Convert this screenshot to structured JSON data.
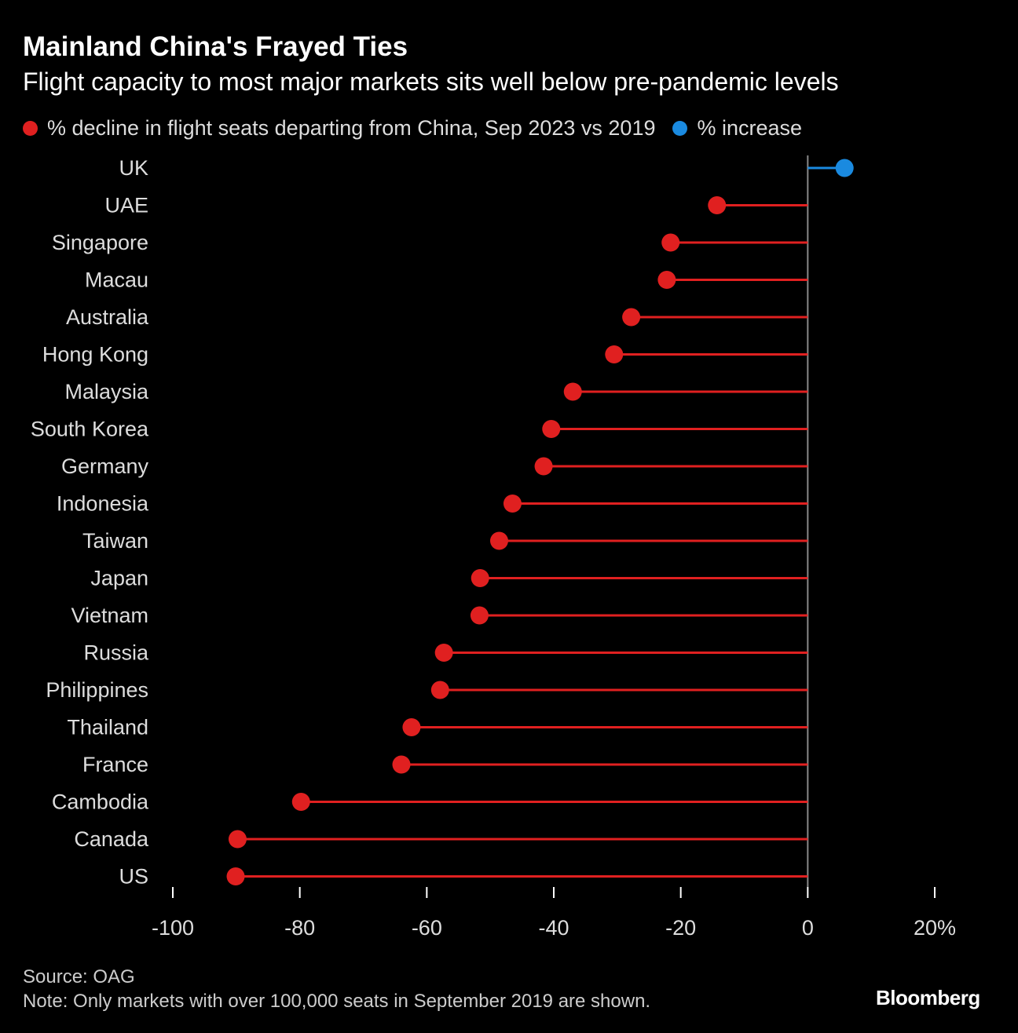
{
  "chart_data": {
    "type": "lollipop",
    "title": "Mainland China's Frayed Ties",
    "subtitle": "Flight capacity to most major markets sits well below pre-pandemic levels",
    "legend": [
      {
        "label": "% decline in flight seats departing from China, Sep 2023 vs 2019",
        "color": "#e02020"
      },
      {
        "label": "% increase",
        "color": "#1a8ae0"
      }
    ],
    "categories": [
      "UK",
      "UAE",
      "Singapore",
      "Macau",
      "Australia",
      "Hong Kong",
      "Malaysia",
      "South Korea",
      "Germany",
      "Indonesia",
      "Taiwan",
      "Japan",
      "Vietnam",
      "Russia",
      "Philippines",
      "Thailand",
      "France",
      "Cambodia",
      "Canada",
      "US"
    ],
    "values": [
      5.8,
      -14.3,
      -21.6,
      -22.2,
      -27.8,
      -30.5,
      -37,
      -40.4,
      -41.6,
      -46.5,
      -48.6,
      -51.6,
      -51.7,
      -57.3,
      -57.9,
      -62.4,
      -64,
      -79.8,
      -89.8,
      -90.1
    ],
    "xlim": [
      -100,
      20
    ],
    "xticks": [
      -100,
      -80,
      -60,
      -40,
      -20,
      0,
      20
    ],
    "xtick_labels": [
      "-100",
      "-80",
      "-60",
      "-40",
      "-20",
      "0",
      "20%"
    ],
    "grid": false
  },
  "footer": {
    "source": "Source: OAG",
    "note": "Note: Only markets with over 100,000 seats in September 2019 are shown."
  },
  "brand": "Bloomberg",
  "colors": {
    "decline": "#e02020",
    "increase": "#1a8ae0",
    "background": "#000000",
    "zero_line": "#888888"
  }
}
